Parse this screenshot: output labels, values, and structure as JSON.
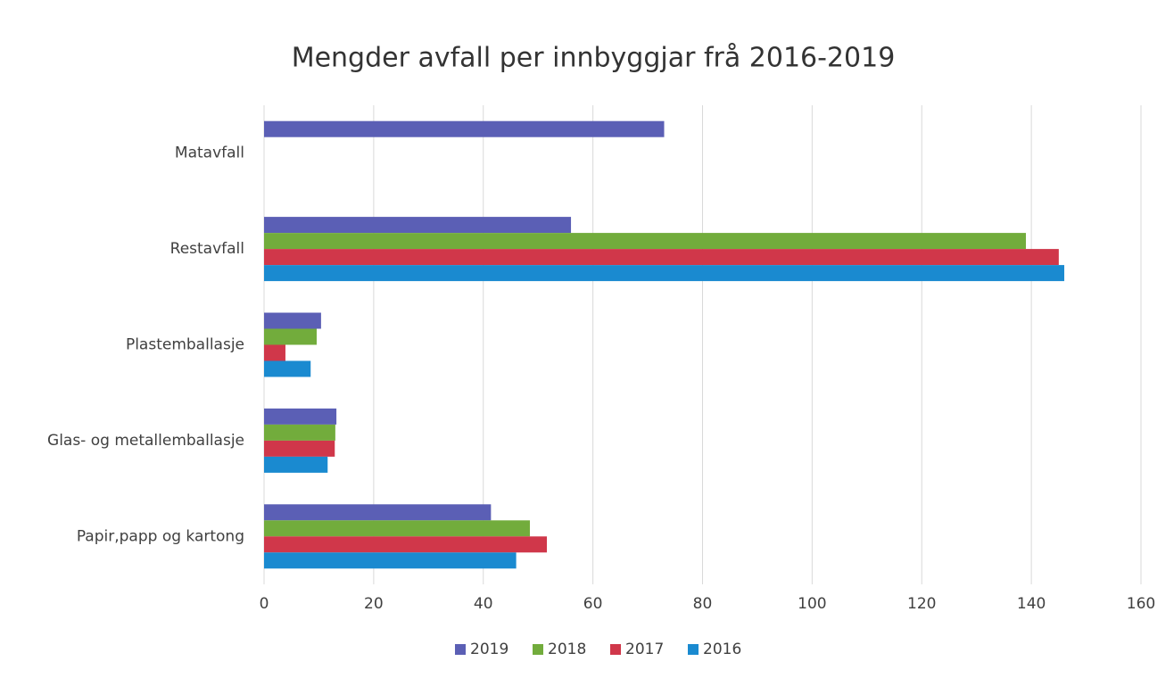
{
  "chart_data": {
    "type": "barh",
    "title": "Mengder avfall per innbyggjar frå 2016-2019",
    "categories": [
      "Matavfall",
      "Restavfall",
      "Plastemballasje",
      "Glas- og metallemballasje",
      "Papir,papp og kartong"
    ],
    "series": [
      {
        "name": "2019",
        "color": "#5b5fb5",
        "values": [
          73,
          56,
          10.4,
          13.2,
          41.4
        ]
      },
      {
        "name": "2018",
        "color": "#72ac3c",
        "values": [
          null,
          139,
          9.6,
          13,
          48.5
        ]
      },
      {
        "name": "2017",
        "color": "#d0374a",
        "values": [
          null,
          145,
          3.9,
          12.9,
          51.6
        ]
      },
      {
        "name": "2016",
        "color": "#1a8ad0",
        "values": [
          null,
          146,
          8.5,
          11.6,
          46
        ]
      }
    ],
    "xlim": [
      0,
      160
    ],
    "xticks": [
      0,
      20,
      40,
      60,
      80,
      100,
      120,
      140,
      160
    ],
    "grid": true,
    "legend": "bottom"
  }
}
